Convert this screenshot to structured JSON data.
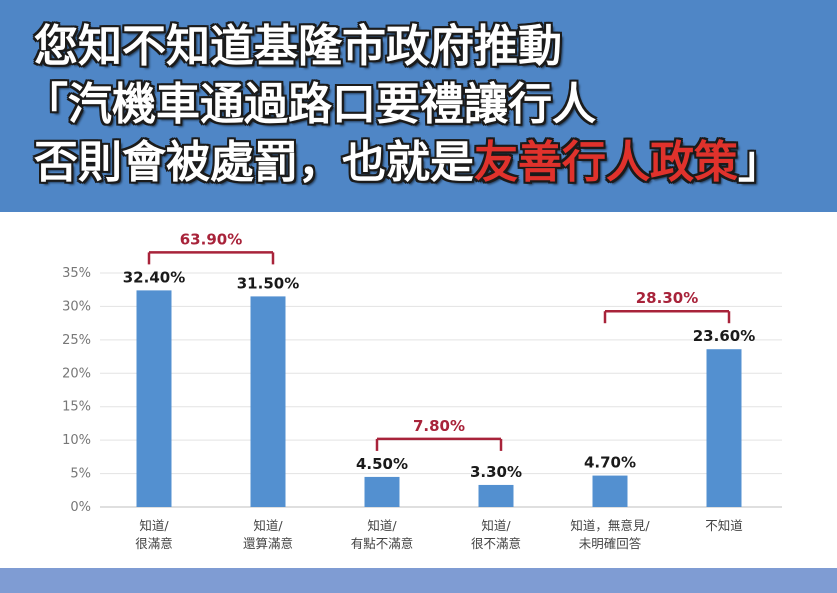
{
  "header": {
    "title_lines": [
      "您知不知道基隆市政府推動",
      "「汽機車通過路口要禮讓行人",
      "否則會被處罰，也就是"
    ],
    "title_highlight": "友善行人政策",
    "title_end": "」"
  },
  "colors": {
    "header_bg": "#4f86c6",
    "bar": "#5390d0",
    "bracket": "#a8233a",
    "highlight": "#e0322c",
    "footer": "#7f9cd3"
  },
  "chart_data": {
    "type": "bar",
    "categories": [
      [
        "知道/",
        "很滿意"
      ],
      [
        "知道/",
        "還算滿意"
      ],
      [
        "知道/",
        "有點不滿意"
      ],
      [
        "知道/",
        "很不滿意"
      ],
      [
        "知道，無意見/",
        "未明確回答"
      ],
      [
        "不知道"
      ]
    ],
    "values": [
      32.4,
      31.5,
      4.5,
      3.3,
      4.7,
      23.6
    ],
    "value_labels": [
      "32.40%",
      "31.50%",
      "4.50%",
      "3.30%",
      "4.70%",
      "23.60%"
    ],
    "yticks": [
      0,
      5,
      10,
      15,
      20,
      25,
      30,
      35
    ],
    "ytick_labels": [
      "0%",
      "5%",
      "10%",
      "15%",
      "20%",
      "25%",
      "30%",
      "35%"
    ],
    "ylim": [
      0,
      35
    ],
    "grid": true,
    "group_brackets": [
      {
        "from": 0,
        "to": 1,
        "label": "63.90%"
      },
      {
        "from": 2,
        "to": 3,
        "label": "7.80%"
      },
      {
        "from": 4,
        "to": 5,
        "label": "28.30%"
      }
    ]
  }
}
